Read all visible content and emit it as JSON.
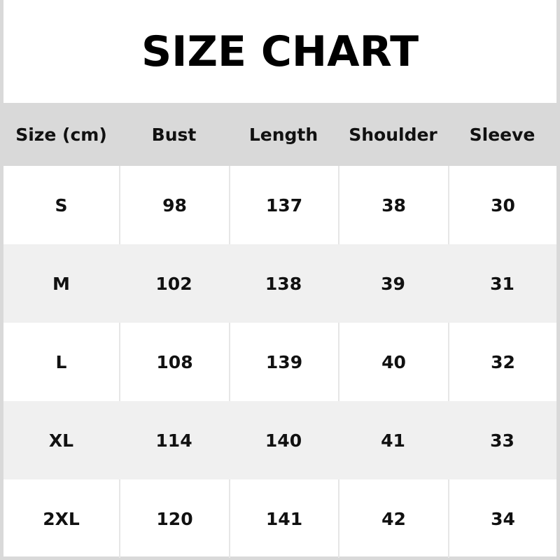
{
  "title": "SIZE CHART",
  "headers": [
    "Size (cm)",
    "Bust",
    "Length",
    "Shoulder",
    "Sleeve"
  ],
  "rows": [
    [
      "S",
      "98",
      "137",
      "38",
      "30"
    ],
    [
      "M",
      "102",
      "138",
      "39",
      "31"
    ],
    [
      "L",
      "108",
      "139",
      "40",
      "32"
    ],
    [
      "XL",
      "114",
      "140",
      "41",
      "33"
    ],
    [
      "2XL",
      "120",
      "141",
      "42",
      "34"
    ]
  ],
  "colors": {
    "header_bg": "#d9d9d9",
    "alt_row_bg": "#f0f0f0",
    "row_bg": "#ffffff"
  }
}
